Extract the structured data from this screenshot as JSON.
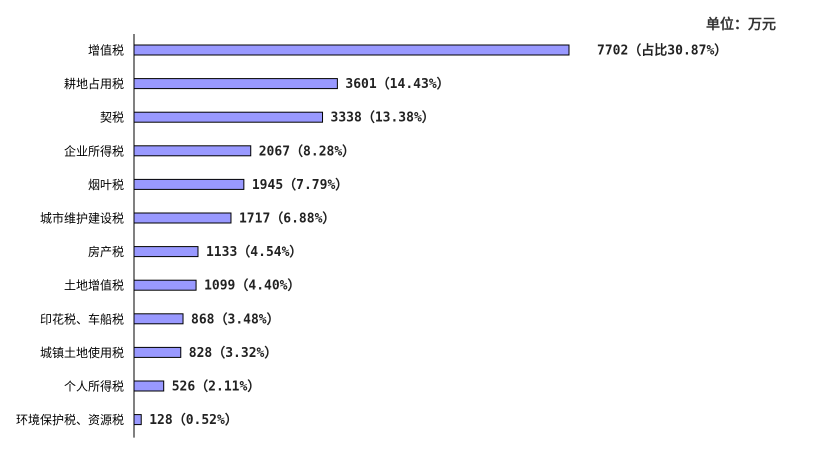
{
  "unit_label": "单位：万元",
  "colors": {
    "bar": "#9999ff",
    "bar_stroke": "#000000",
    "axis": "#000000",
    "text": "#222222"
  },
  "chart_data": {
    "type": "bar",
    "orientation": "horizontal",
    "title": "",
    "xlabel": "",
    "ylabel": "",
    "unit": "单位：万元",
    "grid": false,
    "legend": "none",
    "categories": [
      "增值税",
      "耕地占用税",
      "契税",
      "企业所得税",
      "烟叶税",
      "城市维护建设税",
      "房产税",
      "土地增值税",
      "印花税、车船税",
      "城镇土地使用税",
      "个人所得税",
      "环境保护税、资源税"
    ],
    "values": [
      7702,
      3601,
      3338,
      2067,
      1945,
      1717,
      1133,
      1099,
      868,
      828,
      526,
      128
    ],
    "data_labels": [
      "7702（占比30.87%）",
      "3601（14.43%）",
      "3338（13.38%）",
      "2067（8.28%）",
      "1945（7.79%）",
      "1717（6.88%）",
      "1133（4.54%）",
      "1099（4.40%）",
      "868（3.48%）",
      "828（3.32%）",
      "526（2.11%）",
      "128（0.52%）"
    ]
  }
}
